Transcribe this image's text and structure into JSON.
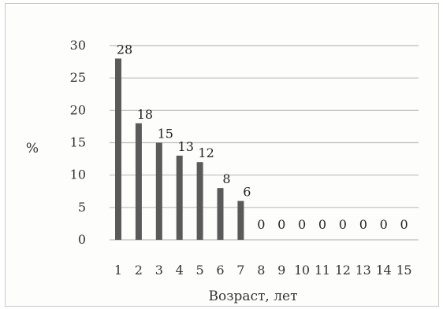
{
  "chart_data": {
    "type": "bar",
    "title": "",
    "xlabel": "Возраст, лет",
    "ylabel": "%",
    "categories": [
      "1",
      "2",
      "3",
      "4",
      "5",
      "6",
      "7",
      "8",
      "9",
      "10",
      "11",
      "12",
      "13",
      "14",
      "15"
    ],
    "values": [
      28,
      18,
      15,
      13,
      12,
      8,
      6,
      0,
      0,
      0,
      0,
      0,
      0,
      0,
      0
    ],
    "data_labels": [
      "28",
      "18",
      "15",
      "13",
      "12",
      "8",
      "6",
      "0",
      "0",
      "0",
      "0",
      "0",
      "0",
      "0",
      "0"
    ],
    "yticks": [
      "0",
      "5",
      "10",
      "15",
      "20",
      "25",
      "30"
    ],
    "ylim": [
      0,
      30
    ],
    "grid": true,
    "legend": "none",
    "bar_color": "#5a5a5a",
    "grid_color": "#bdbdbd"
  }
}
